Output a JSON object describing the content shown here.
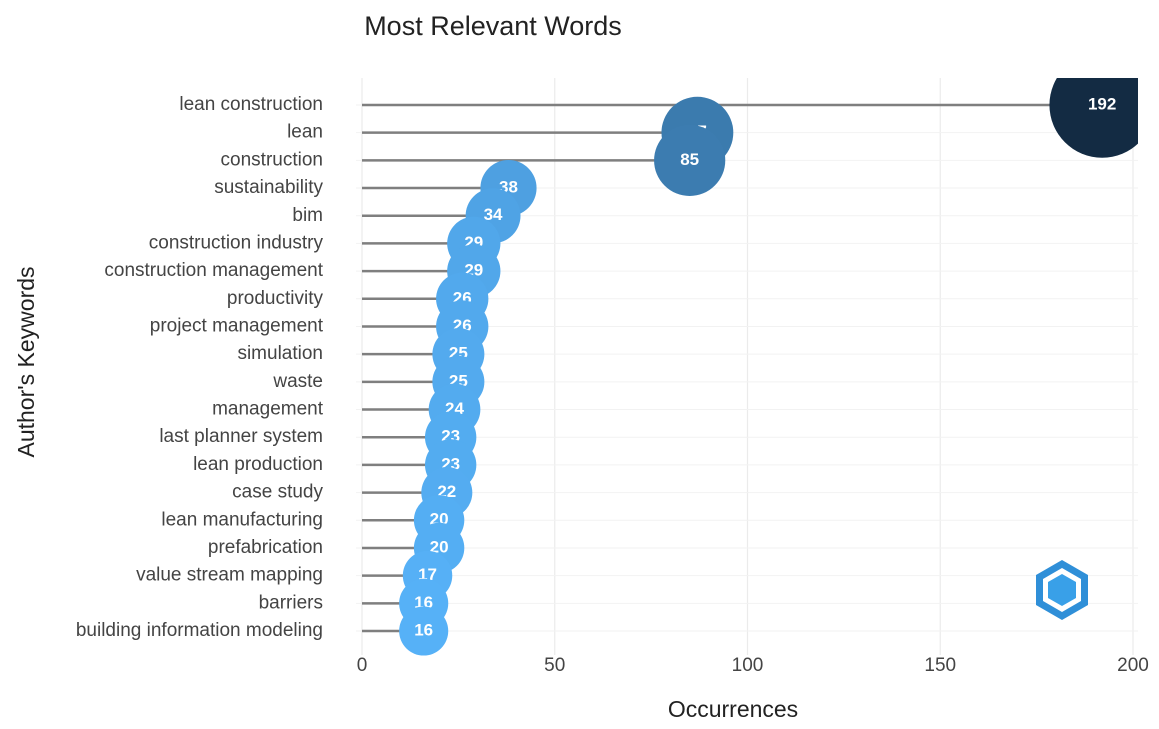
{
  "chart_data": {
    "type": "lollipop",
    "title": "Most Relevant Words",
    "x_label": "Occurrences",
    "y_label": "Author's Keywords",
    "categories": [
      "lean construction",
      "lean",
      "construction",
      "sustainability",
      "bim",
      "construction industry",
      "construction management",
      "productivity",
      "project management",
      "simulation",
      "waste",
      "management",
      "last planner system",
      "lean production",
      "case study",
      "lean manufacturing",
      "prefabrication",
      "value stream mapping",
      "barriers",
      "building information modeling"
    ],
    "values": [
      192,
      87,
      85,
      38,
      34,
      29,
      29,
      26,
      26,
      25,
      25,
      24,
      23,
      23,
      22,
      20,
      20,
      17,
      16,
      16
    ],
    "color_scale": [
      "#56B1F7",
      "#132B43"
    ],
    "stem_color": "#7f7f7f",
    "xlim": [
      0,
      200
    ],
    "xticks": [
      0,
      50,
      100,
      150,
      200
    ],
    "grid": true
  }
}
